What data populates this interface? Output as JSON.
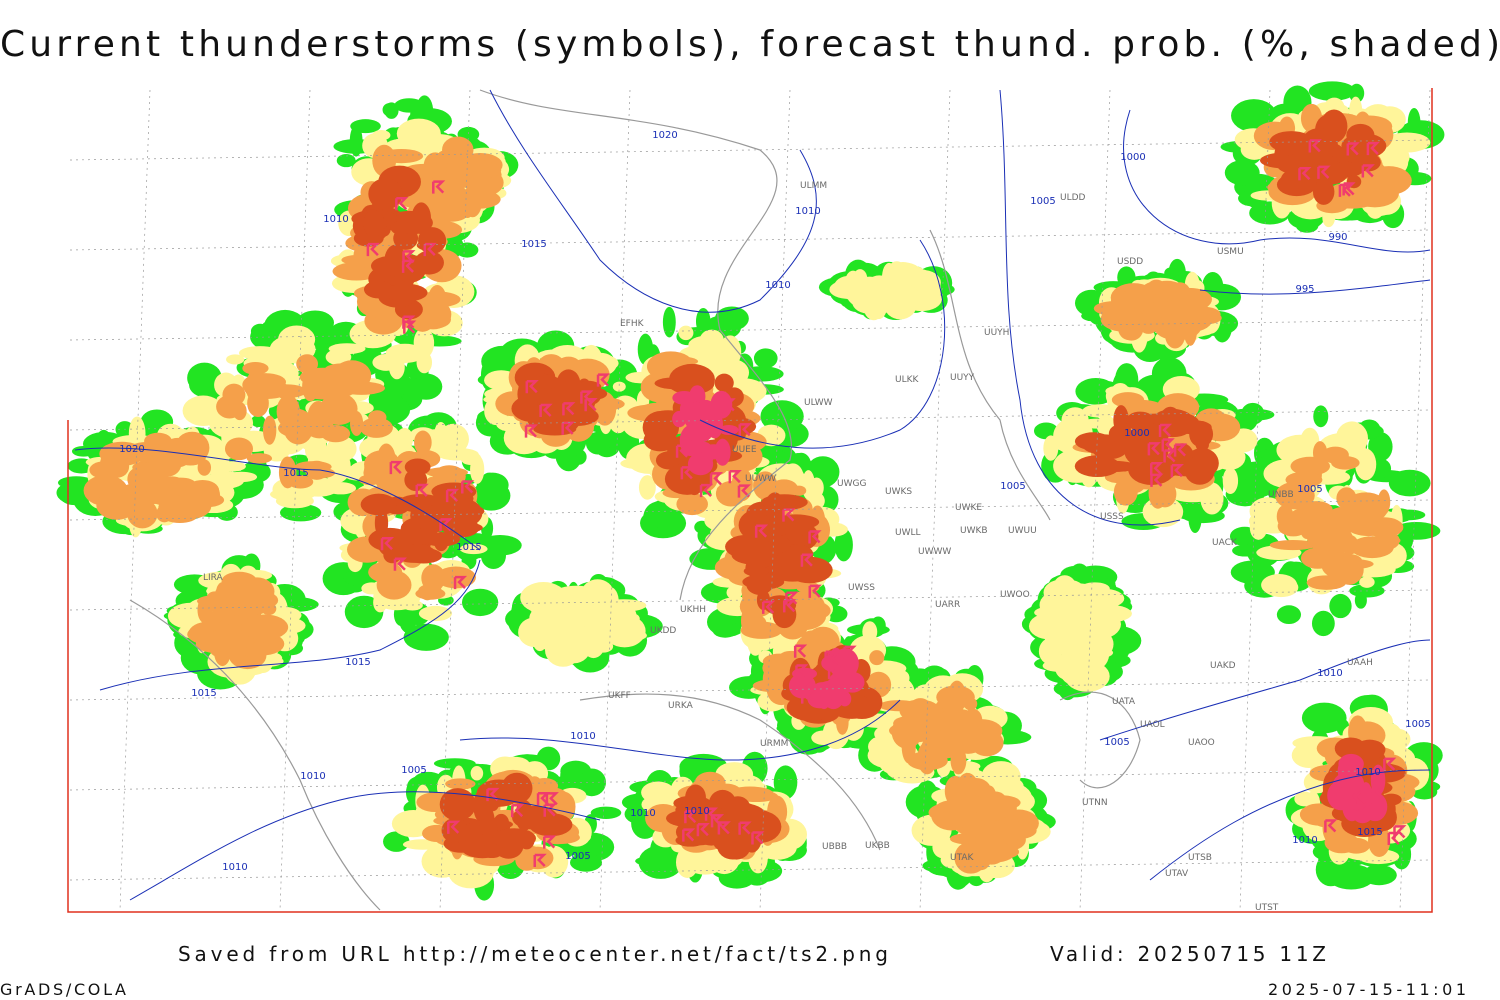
{
  "header": {
    "title": "Current thunderstorms (symbols), forecast thund. prob. (%, shaded)"
  },
  "footer": {
    "source": "Saved from URL http://meteocenter.net/fact/ts2.png",
    "valid": "Valid: 20250715 11Z",
    "software": "GrADS/COLA",
    "timestamp": "2025-07-15-11:01"
  },
  "isobars": {
    "labels": [
      1020,
      1010,
      1015,
      1020,
      1015,
      1015,
      1010,
      1010,
      1000,
      1005,
      990,
      995,
      1005,
      1000,
      1005,
      1015,
      1015,
      1010,
      1010,
      1005,
      1010,
      1010,
      1005,
      1010,
      1005,
      1010,
      1015,
      1010,
      1005,
      1010
    ]
  },
  "stations": {
    "labels": [
      "LIRA",
      "ULMM",
      "ULDD",
      "USMU",
      "USDD",
      "UUYH",
      "ULKK",
      "UUYY",
      "ULWW",
      "UWGG",
      "UWKS",
      "UWKE",
      "UWKB",
      "UWUU",
      "UWLL",
      "UWWW",
      "UWSS",
      "UARR",
      "UWOO",
      "UAKD",
      "UACK",
      "UAAH",
      "URMM",
      "UBBB",
      "UTAK",
      "UTSB",
      "UTAV",
      "UTNN",
      "UAOL",
      "UATA",
      "UAOO",
      "EFHK",
      "UUEE",
      "UUWW",
      "UKDD",
      "UKHH",
      "UKFF",
      "UKBB",
      "URKA",
      "USSS",
      "UNBB",
      "UTST"
    ]
  }
}
